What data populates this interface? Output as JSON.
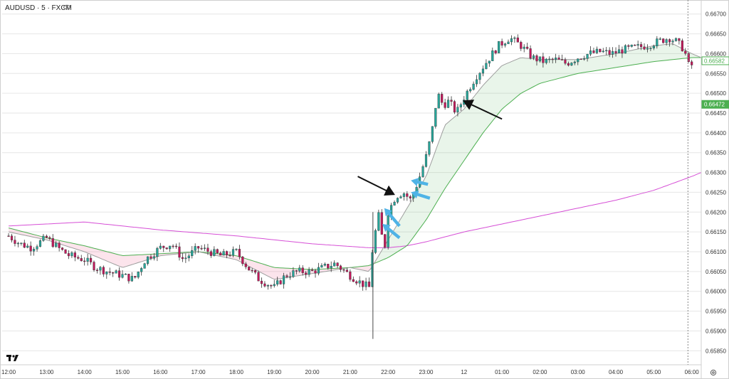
{
  "header": {
    "title": "AUDUSD · 5 · FXCM",
    "eye_icon": "eye-icon"
  },
  "logo": {
    "icon": "tradingview-logo-icon",
    "text": "TV"
  },
  "settings_icon": "gear-icon",
  "colors": {
    "bull": "#26a69a",
    "bear": "#c2185b",
    "ema_fast": "#9e9e9e",
    "ema_slow": "#4caf50",
    "ma_long": "#d64fd6",
    "cloud_bull": "rgba(76,175,80,0.12)",
    "cloud_bear": "rgba(233,30,99,0.12)",
    "arrow_black": "#111111",
    "arrow_blue": "#4fb3e6",
    "price_tag_green": "#4caf50"
  },
  "chart_data": {
    "type": "candlestick",
    "symbol": "AUDUSD",
    "timeframe": "5",
    "source": "FXCM",
    "y_ticks": [
      "0.66700",
      "0.66650",
      "0.66600",
      "0.66550",
      "0.66500",
      "0.66450",
      "0.66400",
      "0.66350",
      "0.66300",
      "0.66250",
      "0.66200",
      "0.66150",
      "0.66100",
      "0.66050",
      "0.66000",
      "0.65950",
      "0.65900",
      "0.65850"
    ],
    "ylim": [
      0.6582,
      0.6673
    ],
    "x_ticks": [
      "12:00",
      "13:00",
      "14:00",
      "15:00",
      "16:00",
      "17:00",
      "18:00",
      "19:00",
      "20:00",
      "21:00",
      "22:00",
      "23:00",
      "12",
      "01:00",
      "02:00",
      "03:00",
      "04:00",
      "05:00",
      "06:00"
    ],
    "x_tick_times": [
      0,
      1,
      2,
      3,
      4,
      5,
      6,
      7,
      8,
      9,
      10,
      11,
      12,
      13,
      14,
      15,
      16,
      17,
      18
    ],
    "xlim": [
      -0.17,
      18.25
    ],
    "current_time": 17.9,
    "price_labels": [
      {
        "value": 0.66582,
        "text": "0.66582"
      },
      {
        "value": 0.66472,
        "text": "0.66472"
      }
    ],
    "ohlc_anchor_closes": [
      [
        0.0,
        0.6614
      ],
      [
        0.3,
        0.6612
      ],
      [
        0.6,
        0.6611
      ],
      [
        1.0,
        0.66135
      ],
      [
        1.3,
        0.6611
      ],
      [
        1.6,
        0.6609
      ],
      [
        2.0,
        0.6608
      ],
      [
        2.3,
        0.6606
      ],
      [
        2.6,
        0.6605
      ],
      [
        3.0,
        0.6604
      ],
      [
        3.3,
        0.6603
      ],
      [
        3.6,
        0.6608
      ],
      [
        4.0,
        0.6611
      ],
      [
        4.3,
        0.6612
      ],
      [
        4.6,
        0.6608
      ],
      [
        5.0,
        0.6611
      ],
      [
        5.3,
        0.661
      ],
      [
        5.6,
        0.6609
      ],
      [
        6.0,
        0.661
      ],
      [
        6.3,
        0.6606
      ],
      [
        6.6,
        0.6603
      ],
      [
        7.0,
        0.6601
      ],
      [
        7.3,
        0.6604
      ],
      [
        7.6,
        0.6605
      ],
      [
        8.0,
        0.6605
      ],
      [
        8.3,
        0.6606
      ],
      [
        8.6,
        0.6607
      ],
      [
        9.0,
        0.6604
      ],
      [
        9.3,
        0.6602
      ],
      [
        9.5,
        0.6601
      ],
      [
        9.6,
        0.6612
      ],
      [
        9.75,
        0.6619
      ],
      [
        9.9,
        0.661
      ],
      [
        10.0,
        0.662
      ],
      [
        10.2,
        0.6624
      ],
      [
        10.4,
        0.6625
      ],
      [
        10.6,
        0.6623
      ],
      [
        10.8,
        0.6628
      ],
      [
        11.0,
        0.6634
      ],
      [
        11.15,
        0.664
      ],
      [
        11.3,
        0.665
      ],
      [
        11.45,
        0.6647
      ],
      [
        11.6,
        0.6648
      ],
      [
        11.8,
        0.6645
      ],
      [
        12.0,
        0.6649
      ],
      [
        12.3,
        0.6654
      ],
      [
        12.6,
        0.6658
      ],
      [
        12.9,
        0.6662
      ],
      [
        13.2,
        0.6664
      ],
      [
        13.5,
        0.6662
      ],
      [
        13.8,
        0.6659
      ],
      [
        14.1,
        0.6658
      ],
      [
        14.4,
        0.66585
      ],
      [
        14.7,
        0.66575
      ],
      [
        15.0,
        0.6659
      ],
      [
        15.3,
        0.666
      ],
      [
        15.6,
        0.66605
      ],
      [
        15.9,
        0.666
      ],
      [
        16.2,
        0.6661
      ],
      [
        16.5,
        0.66615
      ],
      [
        16.8,
        0.6662
      ],
      [
        17.1,
        0.6663
      ],
      [
        17.4,
        0.6664
      ],
      [
        17.6,
        0.6663
      ],
      [
        17.8,
        0.6661
      ],
      [
        17.95,
        0.6656
      ],
      [
        18.05,
        0.66582
      ]
    ],
    "ema_fast": [
      [
        0,
        0.6615
      ],
      [
        1,
        0.6613
      ],
      [
        2,
        0.661
      ],
      [
        3,
        0.6606
      ],
      [
        4,
        0.6609
      ],
      [
        5,
        0.661
      ],
      [
        6,
        0.6608
      ],
      [
        7,
        0.6603
      ],
      [
        8,
        0.66045
      ],
      [
        9,
        0.6606
      ],
      [
        9.5,
        0.6605
      ],
      [
        10,
        0.6613
      ],
      [
        10.5,
        0.6621
      ],
      [
        11,
        0.6629
      ],
      [
        11.5,
        0.6642
      ],
      [
        12,
        0.6646
      ],
      [
        12.5,
        0.6652
      ],
      [
        13,
        0.6657
      ],
      [
        13.5,
        0.6659
      ],
      [
        14,
        0.66585
      ],
      [
        15,
        0.66585
      ],
      [
        16,
        0.666
      ],
      [
        17,
        0.6662
      ],
      [
        17.5,
        0.66625
      ],
      [
        18,
        0.666
      ],
      [
        18.25,
        0.6659
      ]
    ],
    "ema_slow": [
      [
        0,
        0.6616
      ],
      [
        1,
        0.66135
      ],
      [
        2,
        0.66115
      ],
      [
        3,
        0.6609
      ],
      [
        4,
        0.66095
      ],
      [
        5,
        0.661
      ],
      [
        6,
        0.6609
      ],
      [
        7,
        0.6606
      ],
      [
        8,
        0.66055
      ],
      [
        9,
        0.6606
      ],
      [
        9.5,
        0.66065
      ],
      [
        10,
        0.66085
      ],
      [
        10.5,
        0.66115
      ],
      [
        11,
        0.6618
      ],
      [
        11.5,
        0.6626
      ],
      [
        12,
        0.6633
      ],
      [
        12.5,
        0.664
      ],
      [
        13,
        0.6646
      ],
      [
        13.5,
        0.665
      ],
      [
        14,
        0.66525
      ],
      [
        15,
        0.6655
      ],
      [
        16,
        0.66565
      ],
      [
        17,
        0.6658
      ],
      [
        18,
        0.6659
      ],
      [
        18.25,
        0.6659
      ]
    ],
    "ma_long": [
      [
        0,
        0.66165
      ],
      [
        2,
        0.66175
      ],
      [
        4,
        0.66155
      ],
      [
        6,
        0.6614
      ],
      [
        8,
        0.6612
      ],
      [
        9.5,
        0.6611
      ],
      [
        10,
        0.6611
      ],
      [
        10.5,
        0.66115
      ],
      [
        11,
        0.66125
      ],
      [
        12,
        0.6615
      ],
      [
        13,
        0.6617
      ],
      [
        14,
        0.6619
      ],
      [
        15,
        0.6621
      ],
      [
        16,
        0.6623
      ],
      [
        17,
        0.66255
      ],
      [
        18,
        0.6629
      ],
      [
        18.25,
        0.663
      ]
    ],
    "annotations": [
      {
        "kind": "black-arrow",
        "from": [
          9.2,
          0.6629
        ],
        "to": [
          10.15,
          0.66245
        ]
      },
      {
        "kind": "black-arrow",
        "from": [
          13.0,
          0.66435
        ],
        "to": [
          12.0,
          0.6648
        ]
      },
      {
        "kind": "blue-arrow",
        "from": [
          11.05,
          0.6627
        ],
        "to": [
          10.6,
          0.6628
        ]
      },
      {
        "kind": "blue-arrow",
        "from": [
          11.1,
          0.66235
        ],
        "to": [
          10.6,
          0.6625
        ]
      },
      {
        "kind": "blue-arrow",
        "from": [
          10.3,
          0.66165
        ],
        "to": [
          9.9,
          0.6621
        ]
      },
      {
        "kind": "blue-arrow",
        "from": [
          10.3,
          0.66135
        ],
        "to": [
          9.85,
          0.6617
        ]
      }
    ]
  }
}
